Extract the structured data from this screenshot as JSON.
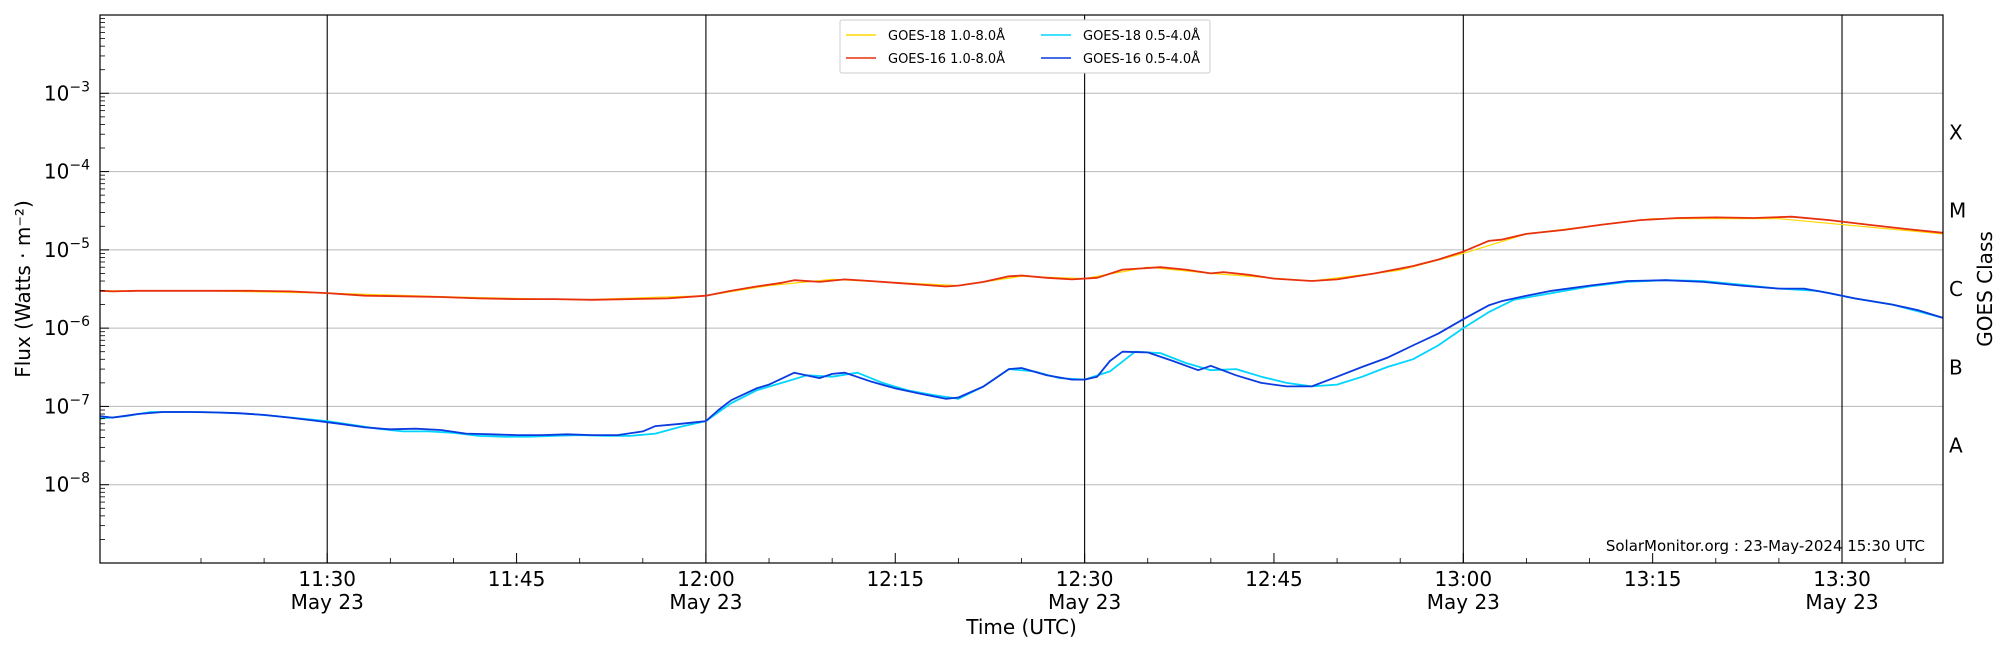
{
  "chart_data": {
    "type": "line",
    "xlabel": "Time (UTC)",
    "ylabel": "Flux (Watts · m⁻²)",
    "y2label": "GOES Class",
    "yscale": "log",
    "ylim": [
      1e-09,
      0.01
    ],
    "xlim": [
      "2024-05-23 11:12",
      "2024-05-23 13:38"
    ],
    "grid": "horizontal",
    "legend_position": "top-center",
    "credit": "SolarMonitor.org : 23-May-2024 15:30 UTC",
    "y_ticks": [
      {
        "value": 1e-08,
        "base": "10",
        "exp": "−8"
      },
      {
        "value": 1e-07,
        "base": "10",
        "exp": "−7"
      },
      {
        "value": 1e-06,
        "base": "10",
        "exp": "−6"
      },
      {
        "value": 1e-05,
        "base": "10",
        "exp": "−5"
      },
      {
        "value": 0.0001,
        "base": "10",
        "exp": "−4"
      },
      {
        "value": 0.001,
        "base": "10",
        "exp": "−3"
      }
    ],
    "x_ticks": [
      {
        "time": "11:30",
        "label": "11:30",
        "sublabel": "May 23",
        "vline": true
      },
      {
        "time": "11:45",
        "label": "11:45",
        "sublabel": "",
        "vline": false
      },
      {
        "time": "12:00",
        "label": "12:00",
        "sublabel": "May 23",
        "vline": true
      },
      {
        "time": "12:15",
        "label": "12:15",
        "sublabel": "",
        "vline": false
      },
      {
        "time": "12:30",
        "label": "12:30",
        "sublabel": "May 23",
        "vline": true
      },
      {
        "time": "12:45",
        "label": "12:45",
        "sublabel": "",
        "vline": false
      },
      {
        "time": "13:00",
        "label": "13:00",
        "sublabel": "May 23",
        "vline": true
      },
      {
        "time": "13:15",
        "label": "13:15",
        "sublabel": "",
        "vline": false
      },
      {
        "time": "13:30",
        "label": "13:30",
        "sublabel": "May 23",
        "vline": true
      }
    ],
    "class_labels": [
      {
        "label": "A",
        "value": 3.16e-08
      },
      {
        "label": "B",
        "value": 3.16e-07
      },
      {
        "label": "C",
        "value": 3.16e-06
      },
      {
        "label": "M",
        "value": 3.16e-05
      },
      {
        "label": "X",
        "value": 0.000316
      }
    ],
    "series": [
      {
        "name": "GOES-18 1.0-8.0Å",
        "color": "#FFD700",
        "x": [
          "11:12",
          "11:20",
          "11:30",
          "11:40",
          "11:50",
          "12:00",
          "12:05",
          "12:10",
          "12:20",
          "12:25",
          "12:30",
          "12:35",
          "12:40",
          "12:48",
          "12:55",
          "13:00",
          "13:05",
          "13:15",
          "13:25",
          "13:38"
        ],
        "y": [
          3e-06,
          3e-06,
          2.8e-06,
          2.5e-06,
          2.3e-06,
          2.6e-06,
          3.5e-06,
          4.2e-06,
          3.5e-06,
          4.6e-06,
          4.3e-06,
          6e-06,
          5e-06,
          4e-06,
          5.5e-06,
          9e-06,
          1.6e-05,
          2.5e-05,
          2.5e-05,
          1.6e-05
        ]
      },
      {
        "name": "GOES-16 1.0-8.0Å",
        "color": "#E8300E",
        "x": [
          "11:12",
          "11:13",
          "11:15",
          "11:18",
          "11:21",
          "11:24",
          "11:27",
          "11:30",
          "11:33",
          "11:36",
          "11:39",
          "11:42",
          "11:45",
          "11:48",
          "11:51",
          "11:54",
          "11:57",
          "12:00",
          "12:02",
          "12:04",
          "12:06",
          "12:07",
          "12:09",
          "12:11",
          "12:13",
          "12:15",
          "12:17",
          "12:19",
          "12:20",
          "12:22",
          "12:24",
          "12:25",
          "12:27",
          "12:29",
          "12:31",
          "12:33",
          "12:36",
          "12:38",
          "12:40",
          "12:41",
          "12:43",
          "12:45",
          "12:48",
          "12:50",
          "12:53",
          "12:56",
          "12:58",
          "13:00",
          "13:02",
          "13:03",
          "13:05",
          "13:08",
          "13:11",
          "13:14",
          "13:17",
          "13:20",
          "13:23",
          "13:26",
          "13:29",
          "13:32",
          "13:35",
          "13:38"
        ],
        "y": [
          3e-06,
          2.95e-06,
          3e-06,
          3e-06,
          3e-06,
          3e-06,
          2.95e-06,
          2.8e-06,
          2.6e-06,
          2.55e-06,
          2.5e-06,
          2.4e-06,
          2.35e-06,
          2.35e-06,
          2.3e-06,
          2.35e-06,
          2.4e-06,
          2.6e-06,
          3e-06,
          3.4e-06,
          3.8e-06,
          4.1e-06,
          3.9e-06,
          4.2e-06,
          4e-06,
          3.8e-06,
          3.6e-06,
          3.4e-06,
          3.5e-06,
          3.9e-06,
          4.6e-06,
          4.7e-06,
          4.4e-06,
          4.2e-06,
          4.4e-06,
          5.6e-06,
          6e-06,
          5.6e-06,
          5e-06,
          5.2e-06,
          4.8e-06,
          4.3e-06,
          4e-06,
          4.2e-06,
          5e-06,
          6.2e-06,
          7.5e-06,
          9.5e-06,
          1.3e-05,
          1.35e-05,
          1.6e-05,
          1.8e-05,
          2.1e-05,
          2.4e-05,
          2.55e-05,
          2.6e-05,
          2.55e-05,
          2.65e-05,
          2.4e-05,
          2.1e-05,
          1.85e-05,
          1.65e-05
        ]
      },
      {
        "name": "GOES-18 0.5-4.0Å",
        "color": "#00D5FF",
        "x": [
          "11:12",
          "11:14",
          "11:16",
          "11:18",
          "11:20",
          "11:22",
          "11:24",
          "11:26",
          "11:28",
          "11:30",
          "11:32",
          "11:34",
          "11:36",
          "11:38",
          "11:40",
          "11:42",
          "11:44",
          "11:46",
          "11:48",
          "11:50",
          "11:52",
          "11:54",
          "11:56",
          "11:58",
          "12:00",
          "12:02",
          "12:04",
          "12:06",
          "12:08",
          "12:10",
          "12:12",
          "12:14",
          "12:16",
          "12:18",
          "12:20",
          "12:22",
          "12:24",
          "12:26",
          "12:28",
          "12:30",
          "12:32",
          "12:34",
          "12:36",
          "12:38",
          "12:40",
          "12:42",
          "12:44",
          "12:46",
          "12:48",
          "12:50",
          "12:52",
          "12:54",
          "12:56",
          "12:58",
          "13:00",
          "13:02",
          "13:04",
          "13:07",
          "13:10",
          "13:13",
          "13:16",
          "13:19",
          "13:22",
          "13:25",
          "13:28",
          "13:31",
          "13:34",
          "13:38"
        ],
        "y": [
          7e-08,
          7.5e-08,
          8.5e-08,
          8.5e-08,
          8.5e-08,
          8.3e-08,
          8e-08,
          7.5e-08,
          7e-08,
          6.5e-08,
          5.8e-08,
          5.2e-08,
          4.8e-08,
          4.8e-08,
          4.6e-08,
          4.2e-08,
          4.1e-08,
          4.1e-08,
          4.2e-08,
          4.3e-08,
          4.2e-08,
          4.2e-08,
          4.5e-08,
          5.5e-08,
          6.5e-08,
          1.1e-07,
          1.6e-07,
          2e-07,
          2.5e-07,
          2.4e-07,
          2.7e-07,
          2e-07,
          1.6e-07,
          1.4e-07,
          1.25e-07,
          1.8e-07,
          3e-07,
          2.8e-07,
          2.3e-07,
          2.2e-07,
          2.8e-07,
          5e-07,
          4.8e-07,
          3.6e-07,
          2.9e-07,
          3e-07,
          2.4e-07,
          2e-07,
          1.8e-07,
          1.9e-07,
          2.4e-07,
          3.2e-07,
          4e-07,
          6e-07,
          1e-06,
          1.6e-06,
          2.3e-06,
          2.8e-06,
          3.4e-06,
          3.9e-06,
          4.1e-06,
          4e-06,
          3.6e-06,
          3.2e-06,
          3e-06,
          2.4e-06,
          2e-06,
          1.35e-06
        ]
      },
      {
        "name": "GOES-16 0.5-4.0Å",
        "color": "#0A3BE0",
        "x": [
          "11:12",
          "11:13",
          "11:15",
          "11:17",
          "11:19",
          "11:21",
          "11:23",
          "11:25",
          "11:27",
          "11:29",
          "11:31",
          "11:33",
          "11:35",
          "11:37",
          "11:39",
          "11:41",
          "11:43",
          "11:45",
          "11:47",
          "11:49",
          "11:51",
          "11:53",
          "11:55",
          "11:56",
          "11:58",
          "12:00",
          "12:01",
          "12:02",
          "12:04",
          "12:05",
          "12:07",
          "12:09",
          "12:10",
          "12:11",
          "12:13",
          "12:15",
          "12:17",
          "12:19",
          "12:20",
          "12:22",
          "12:24",
          "12:25",
          "12:27",
          "12:29",
          "12:30",
          "12:31",
          "12:32",
          "12:33",
          "12:35",
          "12:37",
          "12:39",
          "12:40",
          "12:42",
          "12:44",
          "12:46",
          "12:48",
          "12:50",
          "12:52",
          "12:54",
          "12:56",
          "12:58",
          "13:00",
          "13:02",
          "13:03",
          "13:05",
          "13:07",
          "13:10",
          "13:13",
          "13:16",
          "13:19",
          "13:22",
          "13:25",
          "13:27",
          "13:29",
          "13:31",
          "13:34",
          "13:36",
          "13:38"
        ],
        "y": [
          7.5e-08,
          7.2e-08,
          8e-08,
          8.5e-08,
          8.5e-08,
          8.4e-08,
          8.2e-08,
          7.8e-08,
          7.2e-08,
          6.6e-08,
          6e-08,
          5.4e-08,
          5.1e-08,
          5.2e-08,
          5e-08,
          4.5e-08,
          4.4e-08,
          4.3e-08,
          4.3e-08,
          4.4e-08,
          4.3e-08,
          4.3e-08,
          4.8e-08,
          5.6e-08,
          6e-08,
          6.5e-08,
          9e-08,
          1.2e-07,
          1.7e-07,
          1.9e-07,
          2.7e-07,
          2.3e-07,
          2.6e-07,
          2.7e-07,
          2.1e-07,
          1.7e-07,
          1.45e-07,
          1.25e-07,
          1.3e-07,
          1.8e-07,
          3e-07,
          3.1e-07,
          2.5e-07,
          2.2e-07,
          2.2e-07,
          2.4e-07,
          3.8e-07,
          5e-07,
          4.9e-07,
          3.8e-07,
          2.9e-07,
          3.3e-07,
          2.5e-07,
          2e-07,
          1.8e-07,
          1.8e-07,
          2.4e-07,
          3.2e-07,
          4.2e-07,
          6e-07,
          8.5e-07,
          1.3e-06,
          1.95e-06,
          2.2e-06,
          2.6e-06,
          3e-06,
          3.5e-06,
          4e-06,
          4.1e-06,
          3.9e-06,
          3.5e-06,
          3.2e-06,
          3.2e-06,
          2.8e-06,
          2.4e-06,
          2e-06,
          1.7e-06,
          1.35e-06
        ]
      }
    ]
  }
}
